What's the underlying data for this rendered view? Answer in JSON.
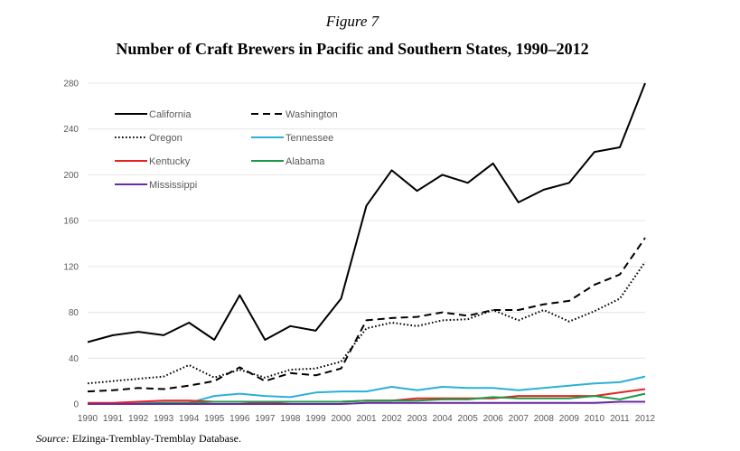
{
  "figure_label": "Figure 7",
  "title": "Number of Craft Brewers in Pacific and Southern States, 1990–2012",
  "source": {
    "prefix": "Source:",
    "text": " Elzinga-Tremblay-Tremblay Database."
  },
  "chart_data": {
    "type": "line",
    "x": [
      1990,
      1991,
      1992,
      1993,
      1994,
      1995,
      1996,
      1997,
      1998,
      1999,
      2000,
      2001,
      2002,
      2003,
      2004,
      2005,
      2006,
      2007,
      2008,
      2009,
      2010,
      2011,
      2012
    ],
    "ylim": [
      0,
      280
    ],
    "yticks": [
      0,
      40,
      80,
      120,
      160,
      200,
      240,
      280
    ],
    "grid": true,
    "legend_position": "top-left",
    "series": [
      {
        "name": "California",
        "color": "#000000",
        "dash": "solid",
        "values": [
          54,
          60,
          63,
          60,
          71,
          56,
          95,
          56,
          68,
          64,
          92,
          173,
          204,
          186,
          200,
          193,
          210,
          176,
          187,
          193,
          220,
          224,
          280
        ]
      },
      {
        "name": "Washington",
        "color": "#000000",
        "dash": "dashed",
        "values": [
          11,
          12,
          14,
          13,
          16,
          20,
          32,
          20,
          27,
          25,
          31,
          73,
          75,
          76,
          80,
          77,
          82,
          82,
          87,
          90,
          104,
          113,
          145
        ]
      },
      {
        "name": "Oregon",
        "color": "#000000",
        "dash": "dotted",
        "values": [
          18,
          20,
          22,
          24,
          34,
          23,
          30,
          23,
          30,
          31,
          37,
          66,
          71,
          68,
          73,
          74,
          82,
          73,
          82,
          72,
          81,
          92,
          124
        ]
      },
      {
        "name": "Tennessee",
        "color": "#2bb0d8",
        "dash": "solid",
        "values": [
          0,
          0,
          1,
          1,
          1,
          7,
          9,
          7,
          6,
          10,
          11,
          11,
          15,
          12,
          15,
          14,
          14,
          12,
          14,
          16,
          18,
          19,
          24
        ]
      },
      {
        "name": "Kentucky",
        "color": "#e8231f",
        "dash": "solid",
        "values": [
          1,
          1,
          2,
          3,
          3,
          2,
          2,
          1,
          2,
          2,
          2,
          3,
          3,
          5,
          5,
          5,
          5,
          7,
          7,
          7,
          7,
          10,
          13
        ]
      },
      {
        "name": "Alabama",
        "color": "#1e9a47",
        "dash": "solid",
        "values": [
          0,
          0,
          0,
          1,
          1,
          2,
          2,
          2,
          2,
          2,
          2,
          3,
          3,
          3,
          4,
          4,
          6,
          5,
          5,
          5,
          7,
          4,
          9
        ]
      },
      {
        "name": "Mississippi",
        "color": "#6a2ba2",
        "dash": "solid",
        "values": [
          0,
          0,
          0,
          0,
          0,
          0,
          0,
          0,
          0,
          0,
          0,
          1,
          1,
          1,
          1,
          1,
          1,
          1,
          1,
          1,
          1,
          2,
          2
        ]
      }
    ]
  }
}
